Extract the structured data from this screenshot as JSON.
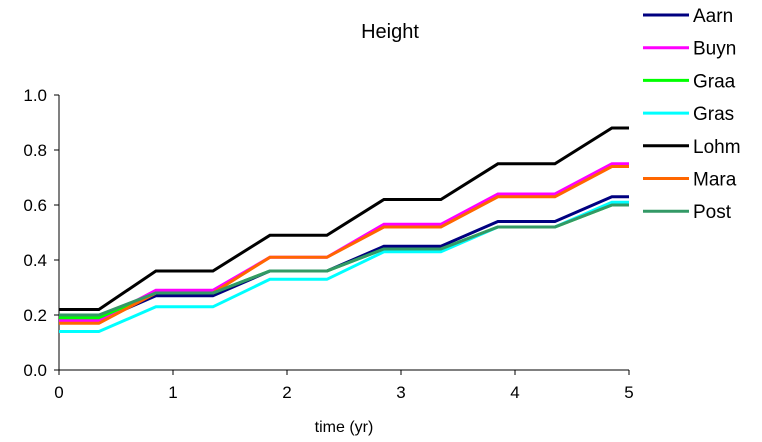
{
  "chart_data": {
    "type": "line",
    "title": "Height",
    "xlabel": "time (yr)",
    "ylabel": "",
    "xlim": [
      0,
      5
    ],
    "ylim": [
      0.0,
      1.0
    ],
    "xticks": [
      "0",
      "1",
      "2",
      "3",
      "4",
      "5"
    ],
    "yticks": [
      "0.0",
      "0.2",
      "0.4",
      "0.6",
      "0.8",
      "1.0"
    ],
    "grid": false,
    "legend_position": "right",
    "x": [
      0,
      0.35,
      0.85,
      1.35,
      1.85,
      2.35,
      2.85,
      3.35,
      3.85,
      4.35,
      4.85,
      5
    ],
    "series": [
      {
        "name": "Aarn",
        "color": "#000080",
        "values": [
          0.18,
          0.18,
          0.27,
          0.27,
          0.36,
          0.36,
          0.45,
          0.45,
          0.54,
          0.54,
          0.63,
          0.63
        ]
      },
      {
        "name": "Buyn",
        "color": "#ff00ff",
        "values": [
          0.18,
          0.18,
          0.29,
          0.29,
          0.41,
          0.41,
          0.53,
          0.53,
          0.64,
          0.64,
          0.75,
          0.75
        ]
      },
      {
        "name": "Graa",
        "color": "#00ff00",
        "values": [
          0.19,
          0.19,
          0.28,
          0.28,
          0.36,
          0.36,
          0.44,
          0.44,
          0.52,
          0.52,
          0.6,
          0.6
        ]
      },
      {
        "name": "Gras",
        "color": "#00ffff",
        "values": [
          0.14,
          0.14,
          0.23,
          0.23,
          0.33,
          0.33,
          0.43,
          0.43,
          0.52,
          0.52,
          0.61,
          0.61
        ]
      },
      {
        "name": "Lohm",
        "color": "#000000",
        "values": [
          0.22,
          0.22,
          0.36,
          0.36,
          0.49,
          0.49,
          0.62,
          0.62,
          0.75,
          0.75,
          0.88,
          0.88
        ]
      },
      {
        "name": "Mara",
        "color": "#ff6600",
        "values": [
          0.17,
          0.17,
          0.28,
          0.28,
          0.41,
          0.41,
          0.52,
          0.52,
          0.63,
          0.63,
          0.74,
          0.74
        ]
      },
      {
        "name": "Post",
        "color": "#339966",
        "values": [
          0.2,
          0.2,
          0.28,
          0.28,
          0.36,
          0.36,
          0.44,
          0.44,
          0.52,
          0.52,
          0.6,
          0.6
        ]
      }
    ]
  }
}
